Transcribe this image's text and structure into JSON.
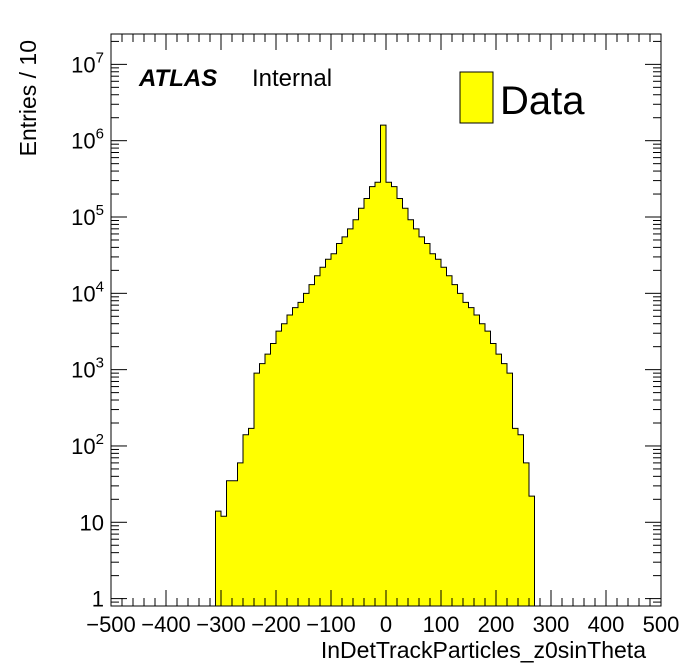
{
  "chart_data": {
    "type": "bar",
    "histogram": true,
    "xlabel": "InDetTrackParticles_z0sinTheta",
    "ylabel": "Entries / 10",
    "xlim": [
      -500,
      500
    ],
    "ylim": [
      0.8,
      25000000
    ],
    "yscale": "log",
    "bin_width": 10,
    "x_ticks": [
      -500,
      -400,
      -300,
      -200,
      -100,
      0,
      100,
      200,
      300,
      400,
      500
    ],
    "x_tick_labels": [
      "−500",
      "−400",
      "−300",
      "−200",
      "−100",
      "0",
      "100",
      "200",
      "300",
      "400",
      "500"
    ],
    "y_tick_labels": [
      {
        "value": 1,
        "base": "1",
        "exp": ""
      },
      {
        "value": 10,
        "base": "10",
        "exp": ""
      },
      {
        "value": 100,
        "base": "10",
        "exp": "2"
      },
      {
        "value": 1000,
        "base": "10",
        "exp": "3"
      },
      {
        "value": 10000,
        "base": "10",
        "exp": "4"
      },
      {
        "value": 100000,
        "base": "10",
        "exp": "5"
      },
      {
        "value": 1000000,
        "base": "10",
        "exp": "6"
      },
      {
        "value": 10000000,
        "base": "10",
        "exp": "7"
      }
    ],
    "atlas_label": "ATLAS",
    "atlas_sublabel": "Internal",
    "legend_position": "top-right",
    "series": [
      {
        "name": "Data",
        "color": "#ffff00",
        "bin_edges_low": [
          -310,
          -300,
          -290,
          -280,
          -270,
          -260,
          -250,
          -240,
          -230,
          -220,
          -210,
          -200,
          -190,
          -180,
          -170,
          -160,
          -150,
          -140,
          -130,
          -120,
          -110,
          -100,
          -90,
          -80,
          -70,
          -60,
          -50,
          -40,
          -30,
          -20,
          -10,
          0,
          10,
          20,
          30,
          40,
          50,
          60,
          70,
          80,
          90,
          100,
          110,
          120,
          130,
          140,
          150,
          160,
          170,
          180,
          190,
          200,
          210,
          220,
          230,
          240,
          250,
          260
        ],
        "values": [
          14,
          12,
          35,
          35,
          60,
          140,
          170,
          900,
          1200,
          1600,
          2200,
          3200,
          4000,
          5200,
          6500,
          7600,
          10000,
          13000,
          17000,
          22000,
          28000,
          33000,
          45000,
          55000,
          70000,
          92000,
          130000,
          175000,
          250000,
          285000,
          1600000,
          285000,
          250000,
          175000,
          130000,
          92000,
          70000,
          55000,
          45000,
          33000,
          28000,
          22000,
          17000,
          13000,
          10000,
          7600,
          6500,
          5200,
          4000,
          3200,
          2200,
          1600,
          1200,
          900,
          170,
          140,
          60,
          22
        ]
      }
    ]
  }
}
